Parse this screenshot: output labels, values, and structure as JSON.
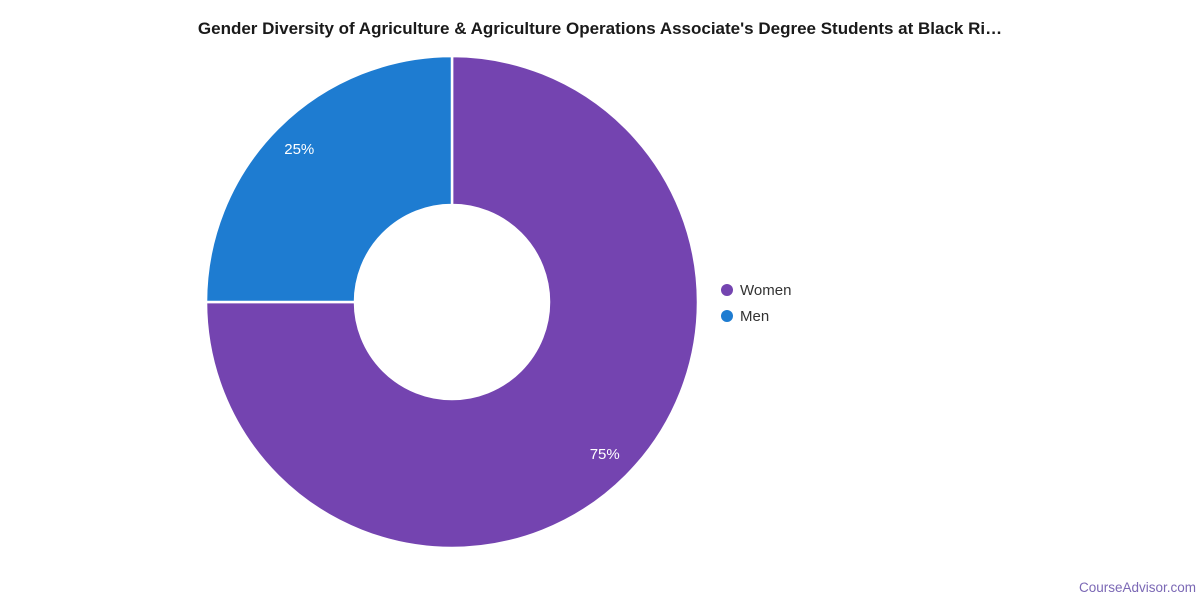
{
  "chart_data": {
    "type": "pie",
    "subtype": "donut",
    "title": "Gender Diversity of Agriculture & Agriculture Operations Associate's Degree Students at Black Ri…",
    "categories": [
      "Women",
      "Men"
    ],
    "values": [
      75,
      25
    ],
    "unit": "percent",
    "slice_labels": [
      "75%",
      "25%"
    ],
    "colors": [
      "#7444b0",
      "#1e7cd1"
    ],
    "start_angle_deg": 0,
    "direction": "clockwise",
    "inner_radius_ratio": 0.39,
    "legend_position": "right",
    "grid": false
  },
  "legend": {
    "items": [
      {
        "label": "Women",
        "color": "#7444b0"
      },
      {
        "label": "Men",
        "color": "#1e7cd1"
      }
    ]
  },
  "footer": {
    "watermark": "CourseAdvisor.com",
    "watermark_color": "#7b68b5"
  }
}
